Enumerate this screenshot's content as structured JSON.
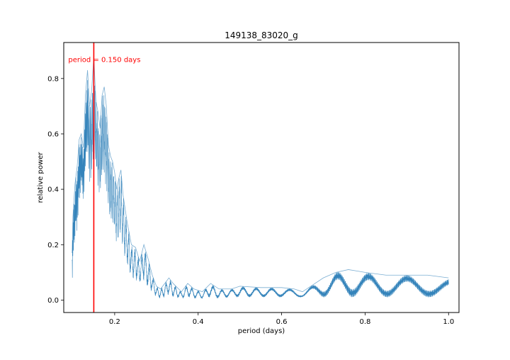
{
  "chart_data": {
    "type": "line",
    "title": "149138_83020_g",
    "xlabel": "period (days)",
    "ylabel": "relative power",
    "xlim": [
      0.078,
      1.025
    ],
    "ylim": [
      -0.045,
      0.93
    ],
    "xticks": [
      0.2,
      0.4,
      0.6,
      0.8,
      1.0
    ],
    "xtick_labels": [
      "0.2",
      "0.4",
      "0.6",
      "0.8",
      "1.0"
    ],
    "yticks": [
      0.0,
      0.2,
      0.4,
      0.6,
      0.8
    ],
    "ytick_labels": [
      "0.0",
      "0.2",
      "0.4",
      "0.6",
      "0.8"
    ],
    "grid": false,
    "series": [
      {
        "color": "#1f77b4",
        "envelope_upper": [
          [
            0.098,
            0.17
          ],
          [
            0.1,
            0.3
          ],
          [
            0.105,
            0.42
          ],
          [
            0.11,
            0.48
          ],
          [
            0.115,
            0.58
          ],
          [
            0.12,
            0.6
          ],
          [
            0.125,
            0.55
          ],
          [
            0.13,
            0.74
          ],
          [
            0.135,
            0.83
          ],
          [
            0.14,
            0.7
          ],
          [
            0.145,
            0.76
          ],
          [
            0.15,
            0.88
          ],
          [
            0.155,
            0.72
          ],
          [
            0.16,
            0.68
          ],
          [
            0.165,
            0.62
          ],
          [
            0.17,
            0.74
          ],
          [
            0.175,
            0.77
          ],
          [
            0.18,
            0.7
          ],
          [
            0.185,
            0.56
          ],
          [
            0.19,
            0.52
          ],
          [
            0.195,
            0.5
          ],
          [
            0.2,
            0.46
          ],
          [
            0.205,
            0.4
          ],
          [
            0.21,
            0.44
          ],
          [
            0.215,
            0.47
          ],
          [
            0.22,
            0.38
          ],
          [
            0.23,
            0.28
          ],
          [
            0.24,
            0.2
          ],
          [
            0.25,
            0.19
          ],
          [
            0.26,
            0.14
          ],
          [
            0.27,
            0.2
          ],
          [
            0.28,
            0.15
          ],
          [
            0.29,
            0.09
          ],
          [
            0.3,
            0.05
          ],
          [
            0.31,
            0.04
          ],
          [
            0.32,
            0.06
          ],
          [
            0.33,
            0.08
          ],
          [
            0.34,
            0.06
          ],
          [
            0.36,
            0.03
          ],
          [
            0.375,
            0.06
          ],
          [
            0.39,
            0.04
          ],
          [
            0.41,
            0.03
          ],
          [
            0.43,
            0.06
          ],
          [
            0.45,
            0.04
          ],
          [
            0.48,
            0.04
          ],
          [
            0.5,
            0.05
          ],
          [
            0.55,
            0.045
          ],
          [
            0.6,
            0.045
          ],
          [
            0.63,
            0.04
          ],
          [
            0.65,
            0.03
          ],
          [
            0.68,
            0.06
          ],
          [
            0.7,
            0.08
          ],
          [
            0.73,
            0.1
          ],
          [
            0.76,
            0.11
          ],
          [
            0.8,
            0.1
          ],
          [
            0.85,
            0.09
          ],
          [
            0.9,
            0.09
          ],
          [
            0.95,
            0.09
          ],
          [
            1.0,
            0.08
          ]
        ],
        "envelope_lower": [
          [
            0.098,
            0.05
          ],
          [
            0.1,
            0.12
          ],
          [
            0.105,
            0.22
          ],
          [
            0.11,
            0.25
          ],
          [
            0.115,
            0.34
          ],
          [
            0.12,
            0.4
          ],
          [
            0.125,
            0.35
          ],
          [
            0.13,
            0.45
          ],
          [
            0.135,
            0.5
          ],
          [
            0.14,
            0.42
          ],
          [
            0.145,
            0.45
          ],
          [
            0.15,
            0.5
          ],
          [
            0.155,
            0.46
          ],
          [
            0.16,
            0.4
          ],
          [
            0.165,
            0.38
          ],
          [
            0.17,
            0.42
          ],
          [
            0.175,
            0.45
          ],
          [
            0.18,
            0.4
          ],
          [
            0.185,
            0.32
          ],
          [
            0.19,
            0.28
          ],
          [
            0.195,
            0.27
          ],
          [
            0.2,
            0.24
          ],
          [
            0.205,
            0.2
          ],
          [
            0.21,
            0.22
          ],
          [
            0.215,
            0.24
          ],
          [
            0.22,
            0.18
          ],
          [
            0.23,
            0.12
          ],
          [
            0.24,
            0.08
          ],
          [
            0.25,
            0.07
          ],
          [
            0.26,
            0.06
          ],
          [
            0.27,
            0.07
          ],
          [
            0.28,
            0.04
          ],
          [
            0.29,
            0.03
          ],
          [
            0.3,
            0.01
          ],
          [
            0.31,
            0.005
          ],
          [
            0.32,
            0.01
          ],
          [
            0.33,
            0.02
          ],
          [
            0.34,
            0.01
          ],
          [
            0.36,
            0.005
          ],
          [
            0.375,
            0.01
          ],
          [
            0.39,
            0.005
          ],
          [
            0.41,
            0.005
          ],
          [
            0.43,
            0.01
          ],
          [
            0.45,
            0.005
          ],
          [
            0.48,
            0.01
          ],
          [
            0.5,
            0.01
          ],
          [
            0.55,
            0.01
          ],
          [
            0.6,
            0.01
          ],
          [
            0.63,
            0.01
          ],
          [
            0.65,
            0.01
          ],
          [
            0.68,
            0.01
          ],
          [
            0.7,
            0.01
          ],
          [
            0.73,
            0.01
          ],
          [
            0.76,
            0.01
          ],
          [
            0.8,
            0.01
          ],
          [
            0.85,
            0.01
          ],
          [
            0.9,
            0.01
          ],
          [
            0.95,
            0.01
          ],
          [
            1.0,
            0.01
          ]
        ]
      }
    ],
    "annotations": [
      {
        "type": "vline",
        "x": 0.15,
        "color": "#ff0000",
        "label": "period = 0.150 days",
        "label_y": 0.87
      }
    ]
  }
}
